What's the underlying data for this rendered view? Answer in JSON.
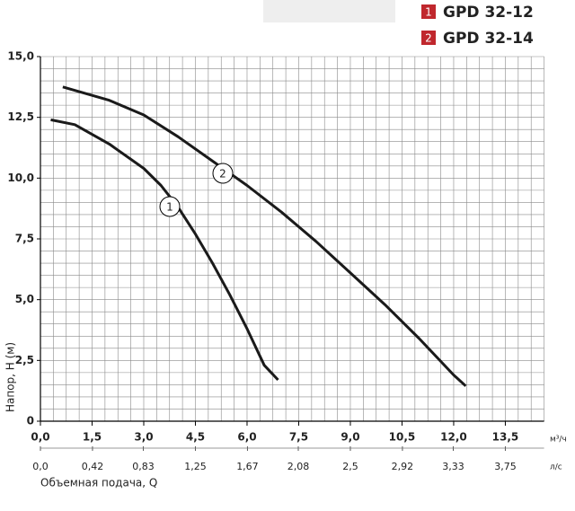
{
  "chart_data": {
    "type": "line",
    "ylabel": "Напор, H (м)",
    "xlabel": "Объемная подача, Q",
    "xunit": "м³/ч",
    "x2unit": "л/с",
    "xlim": [
      0,
      14.625
    ],
    "xticks": [
      {
        "value": 0,
        "label": "0,0"
      },
      {
        "value": 1.5,
        "label": "1,5"
      },
      {
        "value": 3,
        "label": "3,0"
      },
      {
        "value": 4.5,
        "label": "4,5"
      },
      {
        "value": 6,
        "label": "6,0"
      },
      {
        "value": 7.5,
        "label": "7,5"
      },
      {
        "value": 9,
        "label": "9,0"
      },
      {
        "value": 10.5,
        "label": "10,5"
      },
      {
        "value": 12,
        "label": "12,0"
      },
      {
        "value": 13.5,
        "label": "13,5"
      }
    ],
    "x2lim": [
      0,
      4.0625
    ],
    "x2ticks": [
      {
        "value": 0,
        "label": "0,0"
      },
      {
        "value": 0.42,
        "label": "0,42"
      },
      {
        "value": 0.83,
        "label": "0,83"
      },
      {
        "value": 1.25,
        "label": "1,25"
      },
      {
        "value": 1.67,
        "label": "1,67"
      },
      {
        "value": 2.08,
        "label": "2,08"
      },
      {
        "value": 2.5,
        "label": "2,5"
      },
      {
        "value": 2.92,
        "label": "2,92"
      },
      {
        "value": 3.33,
        "label": "3,33"
      },
      {
        "value": 3.75,
        "label": "3,75"
      }
    ],
    "ylim": [
      0,
      15
    ],
    "yticks": [
      0,
      {
        "value": 2.5,
        "label": "2,5"
      },
      {
        "value": 5,
        "label": "5,0"
      },
      {
        "value": 7.5,
        "label": "7,5"
      },
      {
        "value": 10,
        "label": "10,0"
      },
      {
        "value": 12.5,
        "label": "12,5"
      },
      {
        "value": 15,
        "label": "15,0"
      }
    ],
    "grid": true,
    "series": [
      {
        "name": "GPD 32-12",
        "label": "1",
        "color": "#1a1a1a",
        "x": [
          0.3,
          1,
          2,
          3,
          3.5,
          4,
          4.5,
          5,
          5.5,
          6,
          6.5,
          6.9
        ],
        "y": [
          12.4,
          12.2,
          11.4,
          10.4,
          9.7,
          8.8,
          7.7,
          6.5,
          5.2,
          3.8,
          2.3,
          1.7
        ]
      },
      {
        "name": "GPD 32-14",
        "label": "2",
        "color": "#1a1a1a",
        "x": [
          0.65,
          2,
          3,
          4,
          5,
          6,
          7,
          8,
          9,
          10,
          11,
          12,
          12.35
        ],
        "y": [
          13.75,
          13.2,
          12.6,
          11.7,
          10.7,
          9.7,
          8.6,
          7.4,
          6.1,
          4.8,
          3.4,
          1.9,
          1.45
        ]
      }
    ]
  }
}
